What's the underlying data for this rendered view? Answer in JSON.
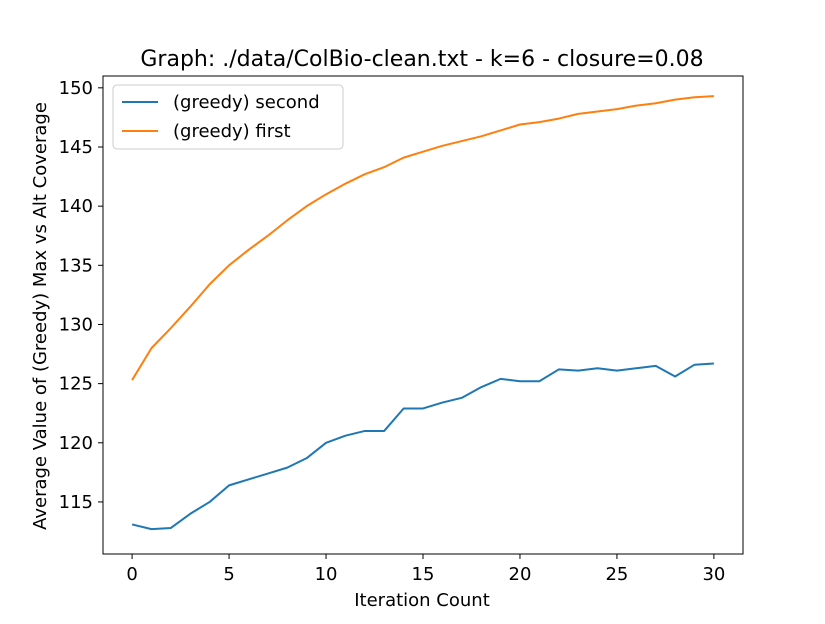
{
  "chart_data": {
    "type": "line",
    "title": "Graph: ./data/ColBio-clean.txt - k=6 - closure=0.08",
    "xlabel": "Iteration Count",
    "ylabel": "Average Value of (Greedy) Max vs Alt Coverage",
    "xlim": [
      -1.5,
      31.5
    ],
    "ylim": [
      110.6,
      151.0
    ],
    "xticks": [
      0,
      5,
      10,
      15,
      20,
      25,
      30
    ],
    "yticks": [
      115,
      120,
      125,
      130,
      135,
      140,
      145,
      150
    ],
    "grid": false,
    "legend_position": "upper-left",
    "x": [
      0,
      1,
      2,
      3,
      4,
      5,
      6,
      7,
      8,
      9,
      10,
      11,
      12,
      13,
      14,
      15,
      16,
      17,
      18,
      19,
      20,
      21,
      22,
      23,
      24,
      25,
      26,
      27,
      28,
      29,
      30
    ],
    "series": [
      {
        "name": "(greedy) second",
        "color": "#1f77b4",
        "values": [
          113.1,
          112.7,
          112.8,
          114.0,
          115.0,
          116.4,
          116.9,
          117.4,
          117.9,
          118.7,
          120.0,
          120.6,
          121.0,
          121.0,
          122.9,
          122.9,
          123.4,
          123.8,
          124.7,
          125.4,
          125.2,
          125.2,
          126.2,
          126.1,
          126.3,
          126.1,
          126.3,
          126.5,
          125.6,
          126.6,
          126.7
        ]
      },
      {
        "name": "(greedy) first",
        "color": "#ff7f0e",
        "values": [
          125.3,
          128.0,
          129.7,
          131.5,
          133.4,
          135.0,
          136.3,
          137.5,
          138.8,
          140.0,
          141.0,
          141.9,
          142.7,
          143.3,
          144.1,
          144.6,
          145.1,
          145.5,
          145.9,
          146.4,
          146.9,
          147.1,
          147.4,
          147.8,
          148.0,
          148.2,
          148.5,
          148.7,
          149.0,
          149.2,
          149.3
        ]
      }
    ]
  }
}
